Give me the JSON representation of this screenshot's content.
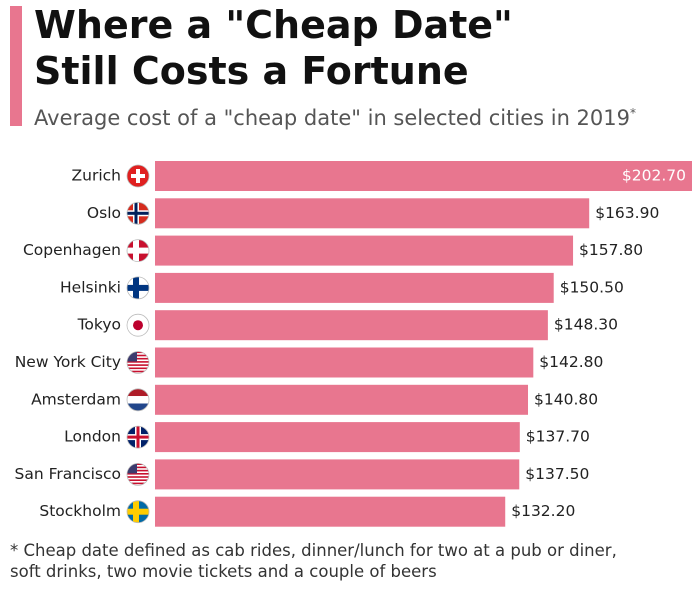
{
  "chart_data": {
    "type": "bar",
    "orientation": "horizontal",
    "title": "Where a \"Cheap Date\" Still Costs a Fortune",
    "subtitle": "Average cost of a \"cheap date\" in selected cities in 2019",
    "subtitle_marker": "*",
    "footnote": "* Cheap date defined as cab rides, dinner/lunch for two at a pub or diner, soft drinks, two movie tickets and a couple of beers",
    "categories": [
      "Zurich",
      "Oslo",
      "Copenhagen",
      "Helsinki",
      "Tokyo",
      "New York City",
      "Amsterdam",
      "London",
      "San Francisco",
      "Stockholm"
    ],
    "values": [
      202.7,
      163.9,
      157.8,
      150.5,
      148.3,
      142.8,
      140.8,
      137.7,
      137.5,
      132.2
    ],
    "value_labels": [
      "$202.70",
      "$163.90",
      "$157.80",
      "$150.50",
      "$148.30",
      "$142.80",
      "$140.80",
      "$137.70",
      "$137.50",
      "$132.20"
    ],
    "color": "#e8768f"
  }
}
